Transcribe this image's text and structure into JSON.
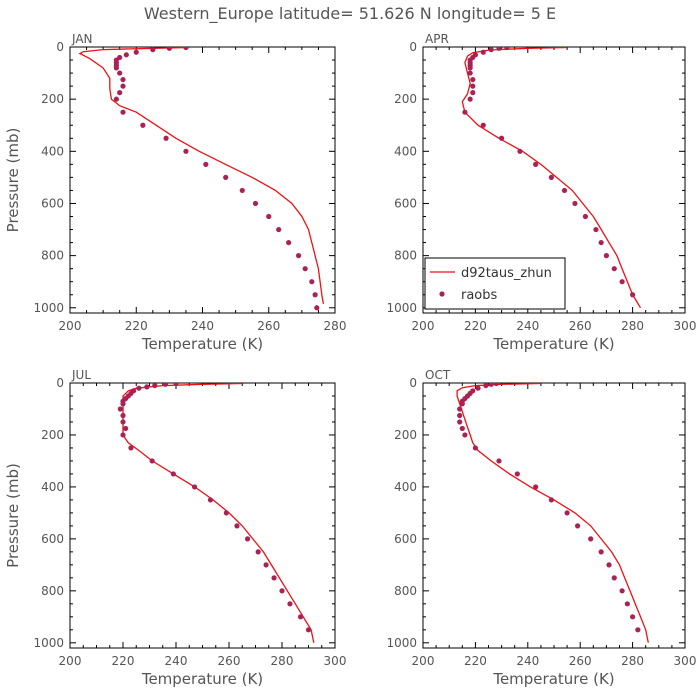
{
  "title": "Western_Europe  latitude= 51.626 N longitude= 5 E",
  "colors": {
    "model": "#ee1111",
    "obs": "#aa2255",
    "axis": "#000000",
    "text": "#555555"
  },
  "legend": {
    "model_label": "d92taus_zhun",
    "obs_label": "raobs"
  },
  "chart_data": [
    {
      "type": "line",
      "panel": "JAN",
      "xlabel": "Temperature (K)",
      "ylabel": "Pressure (mb)",
      "xlim": [
        200,
        280
      ],
      "ylim": [
        1020,
        0
      ],
      "xticks": [
        200,
        220,
        240,
        260,
        280
      ],
      "yticks": [
        0,
        200,
        400,
        600,
        800,
        1000
      ],
      "series": [
        {
          "name": "d92taus_zhun",
          "style": "line",
          "points": [
            [
              236,
              2
            ],
            [
              225,
              5
            ],
            [
              210,
              10
            ],
            [
              204,
              18
            ],
            [
              203,
              25
            ],
            [
              206,
              45
            ],
            [
              210,
              80
            ],
            [
              212,
              120
            ],
            [
              212,
              160
            ],
            [
              212.5,
              200
            ],
            [
              215,
              225
            ],
            [
              220,
              250
            ],
            [
              226,
              300
            ],
            [
              232,
              350
            ],
            [
              239,
              400
            ],
            [
              247,
              450
            ],
            [
              255,
              500
            ],
            [
              262,
              550
            ],
            [
              267,
              600
            ],
            [
              270,
              650
            ],
            [
              272,
              700
            ],
            [
              273,
              750
            ],
            [
              274,
              800
            ],
            [
              275,
              850
            ],
            [
              275.5,
              900
            ],
            [
              276,
              950
            ],
            [
              276.5,
              985
            ]
          ]
        },
        {
          "name": "raobs",
          "style": "dots",
          "points": [
            [
              235,
              2
            ],
            [
              230,
              5
            ],
            [
              225,
              10
            ],
            [
              220,
              20
            ],
            [
              217,
              30
            ],
            [
              215,
              40
            ],
            [
              214,
              50
            ],
            [
              214,
              60
            ],
            [
              214,
              70
            ],
            [
              214,
              80
            ],
            [
              215,
              100
            ],
            [
              216,
              125
            ],
            [
              216,
              150
            ],
            [
              215,
              175
            ],
            [
              214,
              200
            ],
            [
              216,
              250
            ],
            [
              222,
              300
            ],
            [
              229,
              350
            ],
            [
              235,
              400
            ],
            [
              241,
              450
            ],
            [
              247,
              500
            ],
            [
              252,
              550
            ],
            [
              256,
              600
            ],
            [
              260,
              650
            ],
            [
              263,
              700
            ],
            [
              266,
              750
            ],
            [
              269,
              800
            ],
            [
              271,
              850
            ],
            [
              273,
              900
            ],
            [
              274,
              950
            ],
            [
              274.5,
              1000
            ]
          ]
        }
      ]
    },
    {
      "type": "line",
      "panel": "APR",
      "xlabel": "Temperature (K)",
      "ylabel": "",
      "xlim": [
        200,
        300
      ],
      "ylim": [
        1020,
        0
      ],
      "xticks": [
        200,
        220,
        240,
        260,
        280,
        300
      ],
      "yticks": [
        0,
        200,
        400,
        600,
        800,
        1000
      ],
      "series": [
        {
          "name": "d92taus_zhun",
          "style": "line",
          "points": [
            [
              255,
              2
            ],
            [
              240,
              5
            ],
            [
              225,
              12
            ],
            [
              219,
              22
            ],
            [
              217,
              35
            ],
            [
              216,
              60
            ],
            [
              217,
              100
            ],
            [
              218,
              140
            ],
            [
              217,
              180
            ],
            [
              215,
              210
            ],
            [
              216,
              250
            ],
            [
              221,
              300
            ],
            [
              229,
              350
            ],
            [
              238,
              400
            ],
            [
              245,
              450
            ],
            [
              251,
              500
            ],
            [
              257,
              550
            ],
            [
              261,
              600
            ],
            [
              265,
              650
            ],
            [
              268,
              700
            ],
            [
              271,
              750
            ],
            [
              274,
              800
            ],
            [
              276,
              850
            ],
            [
              278,
              900
            ],
            [
              280,
              950
            ],
            [
              283,
              1000
            ]
          ]
        },
        {
          "name": "raobs",
          "style": "dots",
          "points": [
            [
              232,
              2
            ],
            [
              229,
              5
            ],
            [
              226,
              10
            ],
            [
              223,
              20
            ],
            [
              220,
              30
            ],
            [
              219,
              40
            ],
            [
              218,
              50
            ],
            [
              218,
              60
            ],
            [
              218,
              70
            ],
            [
              218,
              80
            ],
            [
              218,
              100
            ],
            [
              219,
              125
            ],
            [
              219,
              150
            ],
            [
              219,
              175
            ],
            [
              218,
              200
            ],
            [
              216,
              250
            ],
            [
              223,
              300
            ],
            [
              230,
              350
            ],
            [
              237,
              400
            ],
            [
              243,
              450
            ],
            [
              249,
              500
            ],
            [
              254,
              550
            ],
            [
              258,
              600
            ],
            [
              262,
              650
            ],
            [
              266,
              700
            ],
            [
              268,
              750
            ],
            [
              270,
              800
            ],
            [
              273,
              850
            ],
            [
              276,
              900
            ],
            [
              280,
              950
            ]
          ]
        }
      ]
    },
    {
      "type": "line",
      "panel": "JUL",
      "xlabel": "Temperature (K)",
      "ylabel": "Pressure (mb)",
      "xlim": [
        200,
        300
      ],
      "ylim": [
        1020,
        0
      ],
      "xticks": [
        200,
        220,
        240,
        260,
        280,
        300
      ],
      "yticks": [
        0,
        200,
        400,
        600,
        800,
        1000
      ],
      "series": [
        {
          "name": "d92taus_zhun",
          "style": "line",
          "points": [
            [
              265,
              2
            ],
            [
              250,
              5
            ],
            [
              235,
              10
            ],
            [
              225,
              20
            ],
            [
              222,
              30
            ],
            [
              220,
              50
            ],
            [
              220,
              80
            ],
            [
              220,
              120
            ],
            [
              220,
              160
            ],
            [
              220,
              200
            ],
            [
              222,
              230
            ],
            [
              226,
              260
            ],
            [
              231,
              300
            ],
            [
              239,
              350
            ],
            [
              247,
              400
            ],
            [
              254,
              450
            ],
            [
              260,
              500
            ],
            [
              265,
              550
            ],
            [
              269,
              600
            ],
            [
              273,
              650
            ],
            [
              276,
              700
            ],
            [
              279,
              750
            ],
            [
              282,
              800
            ],
            [
              285,
              850
            ],
            [
              288,
              900
            ],
            [
              291,
              950
            ],
            [
              292,
              1000
            ]
          ]
        },
        {
          "name": "raobs",
          "style": "dots",
          "points": [
            [
              240,
              2
            ],
            [
              236,
              5
            ],
            [
              232,
              10
            ],
            [
              229,
              15
            ],
            [
              226,
              20
            ],
            [
              224,
              30
            ],
            [
              223,
              40
            ],
            [
              222,
              50
            ],
            [
              221,
              60
            ],
            [
              220,
              70
            ],
            [
              220,
              80
            ],
            [
              219,
              100
            ],
            [
              220,
              125
            ],
            [
              220,
              150
            ],
            [
              221,
              175
            ],
            [
              220,
              200
            ],
            [
              223,
              250
            ],
            [
              231,
              300
            ],
            [
              239,
              350
            ],
            [
              247,
              400
            ],
            [
              253,
              450
            ],
            [
              259,
              500
            ],
            [
              263,
              550
            ],
            [
              267,
              600
            ],
            [
              271,
              650
            ],
            [
              274,
              700
            ],
            [
              277,
              750
            ],
            [
              280,
              800
            ],
            [
              283,
              850
            ],
            [
              287,
              900
            ],
            [
              290,
              950
            ]
          ]
        }
      ]
    },
    {
      "type": "line",
      "panel": "OCT",
      "xlabel": "Temperature (K)",
      "ylabel": "",
      "xlim": [
        200,
        300
      ],
      "ylim": [
        1020,
        0
      ],
      "xticks": [
        200,
        220,
        240,
        260,
        280,
        300
      ],
      "yticks": [
        0,
        200,
        400,
        600,
        800,
        1000
      ],
      "series": [
        {
          "name": "d92taus_zhun",
          "style": "line",
          "points": [
            [
              245,
              2
            ],
            [
              230,
              5
            ],
            [
              220,
              10
            ],
            [
              215,
              18
            ],
            [
              213,
              30
            ],
            [
              213,
              50
            ],
            [
              214,
              80
            ],
            [
              215,
              110
            ],
            [
              216,
              140
            ],
            [
              217,
              170
            ],
            [
              218,
              200
            ],
            [
              219,
              230
            ],
            [
              221,
              260
            ],
            [
              226,
              300
            ],
            [
              233,
              350
            ],
            [
              241,
              400
            ],
            [
              250,
              450
            ],
            [
              258,
              500
            ],
            [
              264,
              550
            ],
            [
              268,
              600
            ],
            [
              272,
              650
            ],
            [
              275,
              700
            ],
            [
              277,
              750
            ],
            [
              279,
              800
            ],
            [
              281,
              850
            ],
            [
              283,
              900
            ],
            [
              285,
              950
            ],
            [
              286,
              1000
            ]
          ]
        },
        {
          "name": "raobs",
          "style": "dots",
          "points": [
            [
              228,
              2
            ],
            [
              226,
              5
            ],
            [
              224,
              10
            ],
            [
              221,
              20
            ],
            [
              219,
              30
            ],
            [
              218,
              40
            ],
            [
              217,
              50
            ],
            [
              216,
              60
            ],
            [
              215,
              70
            ],
            [
              215,
              80
            ],
            [
              214,
              100
            ],
            [
              214,
              125
            ],
            [
              214,
              150
            ],
            [
              215,
              175
            ],
            [
              216,
              200
            ],
            [
              220,
              250
            ],
            [
              229,
              300
            ],
            [
              236,
              350
            ],
            [
              243,
              400
            ],
            [
              249,
              450
            ],
            [
              255,
              500
            ],
            [
              259,
              550
            ],
            [
              264,
              600
            ],
            [
              268,
              650
            ],
            [
              271,
              700
            ],
            [
              273,
              750
            ],
            [
              276,
              800
            ],
            [
              278,
              850
            ],
            [
              280,
              900
            ],
            [
              282,
              950
            ]
          ]
        }
      ]
    }
  ]
}
